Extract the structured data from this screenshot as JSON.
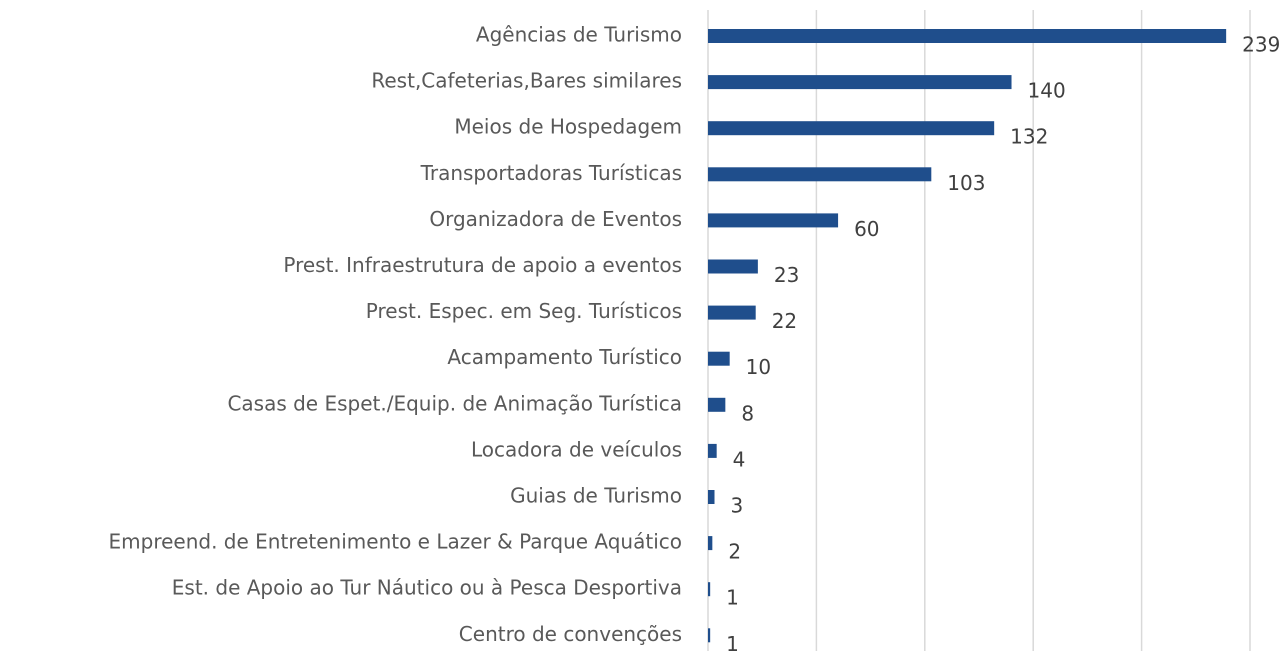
{
  "chart_data": {
    "type": "bar",
    "orientation": "horizontal",
    "categories": [
      "Agências de Turismo",
      "Rest,Cafeterias,Bares similares",
      "Meios de Hospedagem",
      "Transportadoras Turísticas",
      "Organizadora de Eventos",
      "Prest. Infraestrutura de apoio a eventos",
      "Prest. Espec. em Seg. Turísticos",
      "Acampamento Turístico",
      "Casas de Espet./Equip. de Animação Turística",
      "Locadora de veículos",
      "Guias de Turismo",
      "Empreend. de Entretenimento e Lazer & Parque Aquático",
      "Est. de Apoio ao Tur Náutico ou à Pesca Desportiva",
      "Centro de convenções"
    ],
    "values": [
      239,
      140,
      132,
      103,
      60,
      23,
      22,
      10,
      8,
      4,
      3,
      2,
      1,
      1
    ],
    "color": "#1f4e8c",
    "xlim": [
      0,
      250
    ],
    "xticks": [
      0,
      50,
      100,
      150,
      200,
      250
    ],
    "grid": true
  }
}
